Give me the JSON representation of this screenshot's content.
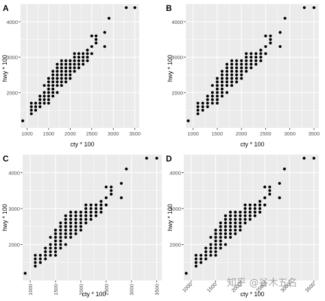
{
  "chart_data": [
    {
      "panel": "A",
      "type": "scatter",
      "xlabel": "cty * 100",
      "ylabel": "hwy * 100",
      "xlim": [
        850,
        3600
      ],
      "ylim": [
        1000,
        4500
      ],
      "xticks": [
        1000,
        1500,
        2000,
        2500,
        3000,
        3500
      ],
      "yticks": [
        2000,
        3000,
        4000
      ],
      "xtick_labels": [
        "1000",
        "1500",
        "2000",
        "2500",
        "3000",
        "3500"
      ],
      "ytick_labels": [
        "2000",
        "3000",
        "4000"
      ],
      "x_tick_rotation": 0,
      "grid": true,
      "points": [
        [
          900,
          1200
        ],
        [
          1100,
          1400
        ],
        [
          1100,
          1500
        ],
        [
          1100,
          1600
        ],
        [
          1100,
          1700
        ],
        [
          1200,
          1500
        ],
        [
          1200,
          1600
        ],
        [
          1200,
          1700
        ],
        [
          1300,
          1600
        ],
        [
          1300,
          1700
        ],
        [
          1300,
          1800
        ],
        [
          1300,
          1900
        ],
        [
          1400,
          1700
        ],
        [
          1400,
          1800
        ],
        [
          1400,
          1900
        ],
        [
          1400,
          2000
        ],
        [
          1400,
          2200
        ],
        [
          1500,
          1700
        ],
        [
          1500,
          1800
        ],
        [
          1500,
          1900
        ],
        [
          1500,
          2000
        ],
        [
          1500,
          2100
        ],
        [
          1500,
          2200
        ],
        [
          1500,
          2300
        ],
        [
          1500,
          2400
        ],
        [
          1600,
          1900
        ],
        [
          1600,
          2000
        ],
        [
          1600,
          2100
        ],
        [
          1600,
          2200
        ],
        [
          1600,
          2300
        ],
        [
          1600,
          2400
        ],
        [
          1600,
          2500
        ],
        [
          1600,
          2600
        ],
        [
          1700,
          2000
        ],
        [
          1700,
          2200
        ],
        [
          1700,
          2300
        ],
        [
          1700,
          2400
        ],
        [
          1700,
          2500
        ],
        [
          1700,
          2600
        ],
        [
          1700,
          2700
        ],
        [
          1700,
          2800
        ],
        [
          1800,
          2200
        ],
        [
          1800,
          2300
        ],
        [
          1800,
          2400
        ],
        [
          1800,
          2500
        ],
        [
          1800,
          2600
        ],
        [
          1800,
          2700
        ],
        [
          1800,
          2800
        ],
        [
          1800,
          2900
        ],
        [
          1900,
          2300
        ],
        [
          1900,
          2400
        ],
        [
          1900,
          2500
        ],
        [
          1900,
          2600
        ],
        [
          1900,
          2700
        ],
        [
          1900,
          2800
        ],
        [
          1900,
          2900
        ],
        [
          2000,
          2400
        ],
        [
          2000,
          2500
        ],
        [
          2000,
          2600
        ],
        [
          2000,
          2700
        ],
        [
          2000,
          2800
        ],
        [
          2000,
          2900
        ],
        [
          2100,
          2600
        ],
        [
          2100,
          2700
        ],
        [
          2100,
          2800
        ],
        [
          2100,
          2900
        ],
        [
          2100,
          3000
        ],
        [
          2100,
          3100
        ],
        [
          2200,
          2700
        ],
        [
          2200,
          2800
        ],
        [
          2200,
          2900
        ],
        [
          2200,
          3000
        ],
        [
          2200,
          3100
        ],
        [
          2300,
          2800
        ],
        [
          2300,
          2900
        ],
        [
          2300,
          3000
        ],
        [
          2300,
          3100
        ],
        [
          2400,
          2900
        ],
        [
          2400,
          3000
        ],
        [
          2400,
          3100
        ],
        [
          2400,
          3200
        ],
        [
          2500,
          3100
        ],
        [
          2500,
          3300
        ],
        [
          2500,
          3600
        ],
        [
          2600,
          3400
        ],
        [
          2600,
          3500
        ],
        [
          2600,
          3600
        ],
        [
          2800,
          3300
        ],
        [
          2800,
          3700
        ],
        [
          2900,
          4100
        ],
        [
          3300,
          4400
        ],
        [
          3500,
          4400
        ]
      ]
    },
    {
      "panel": "B",
      "type": "scatter",
      "xlabel": "cty * 100",
      "ylabel": "hwy * 100",
      "xlim": [
        850,
        3600
      ],
      "ylim": [
        1000,
        4500
      ],
      "xticks": [
        1000,
        1500,
        2000,
        2500,
        3000,
        3500
      ],
      "yticks": [
        2000,
        3000,
        4000
      ],
      "xtick_labels": [
        "1000",
        "1500",
        "2000",
        "2500",
        "3000",
        "3500"
      ],
      "ytick_labels": [
        "2000",
        "3000",
        "4000"
      ],
      "x_tick_rotation": 0,
      "grid": true,
      "points": "same as panel A"
    },
    {
      "panel": "C",
      "type": "scatter",
      "xlabel": "cty * 100",
      "ylabel": "hwy * 100",
      "xlim": [
        850,
        3600
      ],
      "ylim": [
        1000,
        4500
      ],
      "xticks": [
        1000,
        1500,
        2000,
        2500,
        3000,
        3500
      ],
      "yticks": [
        2000,
        3000,
        4000
      ],
      "xtick_labels": [
        "1000",
        "1500",
        "2000",
        "2500",
        "3000",
        "3500"
      ],
      "ytick_labels": [
        "2000",
        "3000",
        "4000"
      ],
      "x_tick_rotation": 90,
      "grid": true,
      "points": "same as panel A"
    },
    {
      "panel": "D",
      "type": "scatter",
      "xlabel": "cty * 100",
      "ylabel": "hwy * 100",
      "xlim": [
        850,
        3600
      ],
      "ylim": [
        1000,
        4500
      ],
      "xticks": [
        1000,
        1500,
        2000,
        2500,
        3000,
        3500
      ],
      "yticks": [
        2000,
        3000,
        4000
      ],
      "xtick_labels": [
        "1000",
        "1500",
        "2000",
        "2500",
        "3000",
        "3500"
      ],
      "ytick_labels": [
        "2000",
        "3000",
        "4000"
      ],
      "x_tick_rotation": 45,
      "grid": true,
      "points": "same as panel A"
    }
  ],
  "watermark": "知乎 @谷木五名",
  "colors": {
    "panel_background": "#ebebeb",
    "grid_major": "#ffffff",
    "point": "#000000",
    "axis_text": "#4d4d4d",
    "title_text": "#000000"
  }
}
